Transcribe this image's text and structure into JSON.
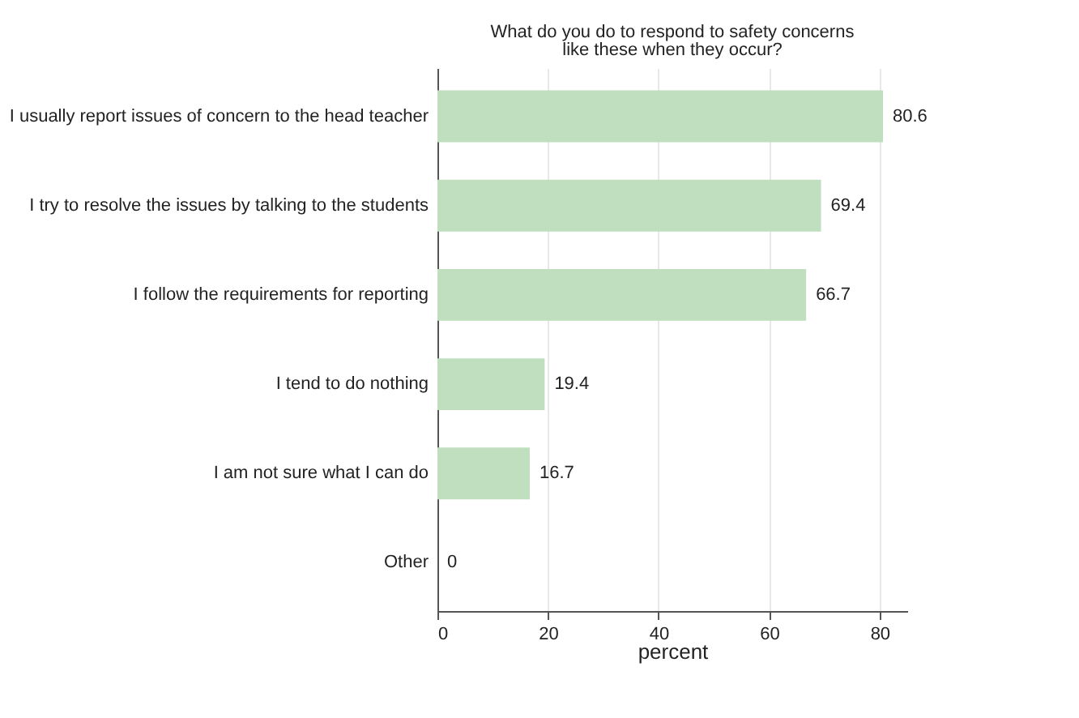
{
  "chart_data": {
    "type": "bar",
    "orientation": "horizontal",
    "title": "What do you do to respond to safety concerns\nlike these when they occur?",
    "xlabel": "percent",
    "categories": [
      "I usually report issues of concern to the head teacher",
      "I try to resolve the issues by talking to the students",
      "I follow the requirements for reporting",
      "I tend to do nothing",
      "I am not sure what I can do",
      "Other"
    ],
    "values": [
      80.6,
      69.4,
      66.7,
      19.4,
      16.7,
      0
    ],
    "color": "#bfdfbf",
    "xlim": [
      0,
      85
    ],
    "xticks": [
      0,
      20,
      40,
      60,
      80
    ],
    "grid": "x",
    "data_labels": true
  }
}
